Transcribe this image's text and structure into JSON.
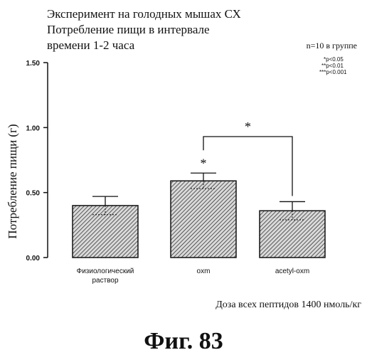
{
  "title_lines": [
    "Эксперимент на голодных мышах СХ",
    "Потребление пищи в интервале",
    "времени 1-2 часа"
  ],
  "group_note": "n=10 в группе",
  "significance_legend": [
    "*p<0.05",
    "**p<0.01",
    "***p<0.001"
  ],
  "figure_label": "Фиг. 83",
  "colors": {
    "ink": "#111111",
    "bar_fill": "#d8d8d8"
  },
  "chart_data": {
    "type": "bar",
    "categories": [
      "Физиологический раствор",
      "oxm",
      "acetyl-oxm"
    ],
    "category_label_lines": [
      [
        "Физиологический",
        "раствор"
      ],
      [
        "oxm"
      ],
      [
        "acetyl-oxm"
      ]
    ],
    "values": [
      0.4,
      0.59,
      0.36
    ],
    "error": [
      0.07,
      0.06,
      0.07
    ],
    "ylabel": "Потребление пищи (г)",
    "xlabel": "Доза всех пептидов 1400 нмоль/кг",
    "ylim": [
      0,
      1.5
    ],
    "yticks": [
      0,
      0.5,
      1.0,
      1.5
    ],
    "ytick_labels": [
      "0.00",
      "0.50",
      "1.00",
      "1.50"
    ],
    "fill_pattern": "diagonal-hatch",
    "grid": false,
    "annotations": [
      {
        "type": "star",
        "category": 1,
        "text": "*"
      },
      {
        "type": "bracket",
        "from": 1,
        "to": 2,
        "text": "*"
      }
    ]
  }
}
